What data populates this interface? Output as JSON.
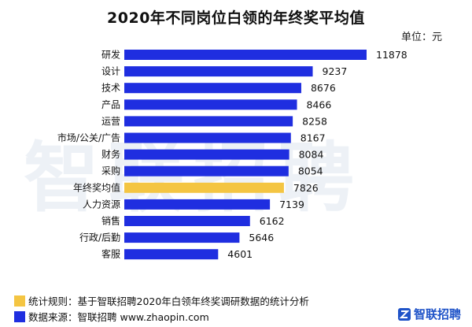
{
  "chart_data": {
    "type": "bar",
    "orientation": "horizontal",
    "title": "2020年不同岗位白领的年终奖平均值",
    "unit_label": "单位：元",
    "categories": [
      "研发",
      "设计",
      "技术",
      "产品",
      "运营",
      "市场/公关/广告",
      "财务",
      "采购",
      "年终奖均值",
      "人力资源",
      "销售",
      "行政/后勤",
      "客服"
    ],
    "values": [
      11878,
      9237,
      8676,
      8466,
      8258,
      8167,
      8084,
      8054,
      7826,
      7139,
      6162,
      5646,
      4601
    ],
    "highlight_category": "年终奖均值",
    "colors": {
      "bar": "#1f2ee0",
      "highlight": "#f4c542"
    },
    "xlim": [
      0,
      12000
    ],
    "grid": false
  },
  "watermark_text": "智联招聘",
  "legend": {
    "line1": "统计规则：基于智联招聘2020年白领年终奖调研数据的统计分析",
    "line2": "数据来源：智联招聘 www.zhaopin.com",
    "colors": {
      "line1": "#f4c542",
      "line2": "#1f2ee0"
    }
  },
  "logo_text": "智联招聘"
}
